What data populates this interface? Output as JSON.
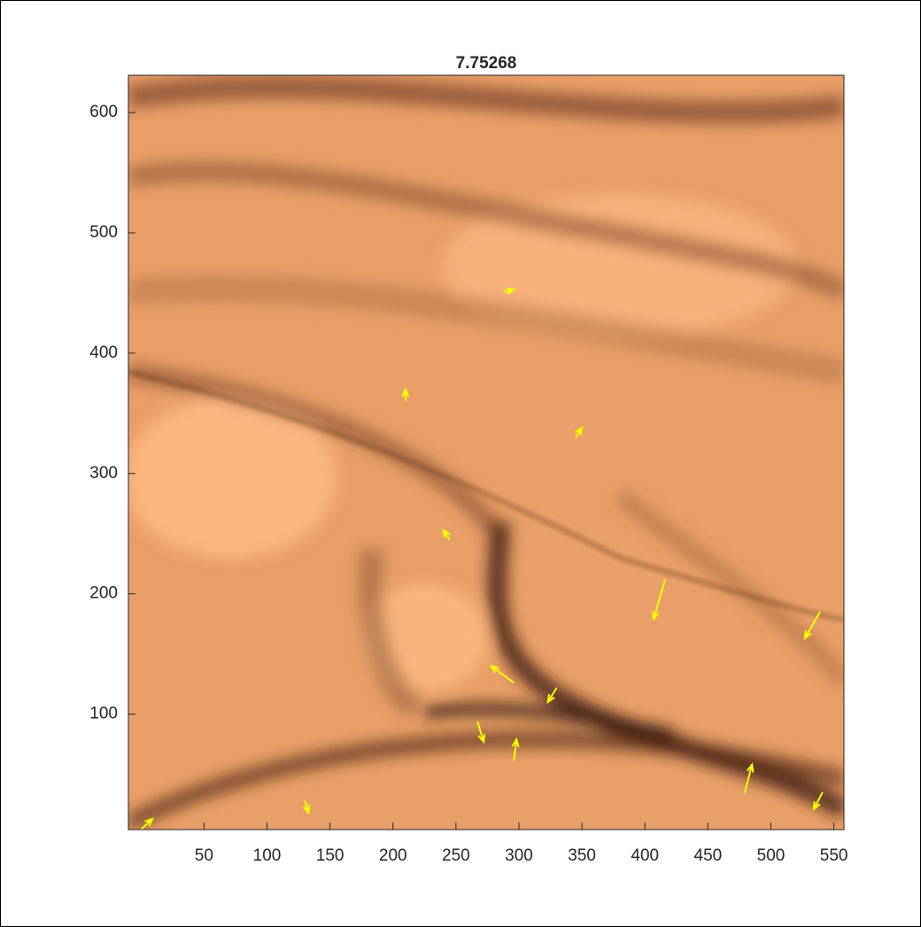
{
  "chart_data": {
    "type": "quiver",
    "title": "7.75268",
    "xlim": [
      -10,
      558
    ],
    "ylim": [
      4,
      631
    ],
    "xticks": [
      50,
      100,
      150,
      200,
      250,
      300,
      350,
      400,
      450,
      500,
      550
    ],
    "yticks": [
      100,
      200,
      300,
      400,
      500,
      600
    ],
    "color": "#ffff00",
    "x": [
      416,
      539,
      296,
      479,
      296,
      541,
      267,
      330,
      0,
      288,
      130,
      345,
      210,
      245
    ],
    "y": [
      212,
      185,
      126,
      34,
      61,
      35,
      94,
      122,
      4,
      451,
      28,
      330,
      360,
      245
    ],
    "u": [
      -9,
      -12,
      -18,
      6,
      2,
      -7,
      5,
      -7,
      9,
      8,
      3,
      5,
      0,
      -5
    ],
    "v": [
      -33,
      -22,
      14,
      24,
      18,
      -14,
      -17,
      -12,
      9,
      2,
      -10,
      8,
      10,
      8
    ]
  }
}
